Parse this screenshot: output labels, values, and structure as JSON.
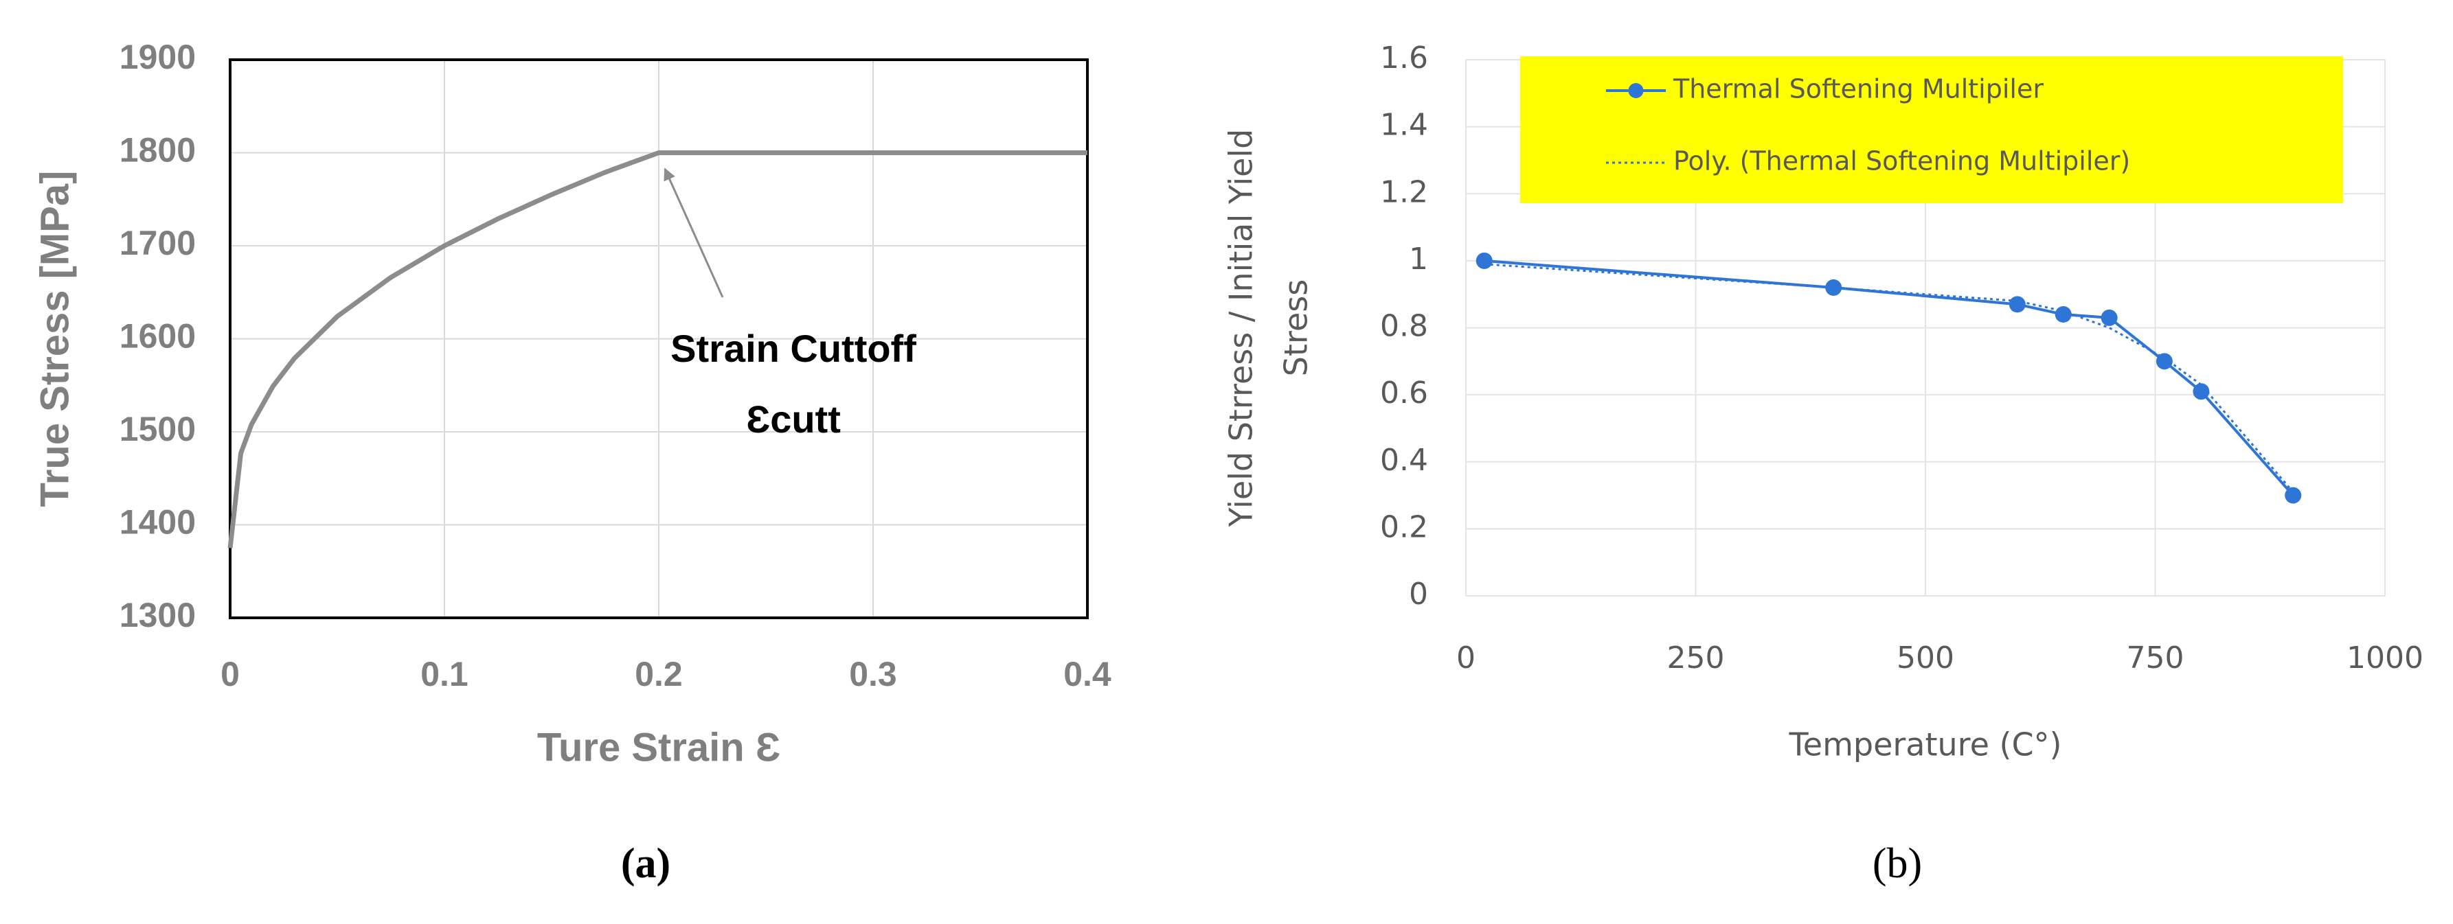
{
  "chart_data": [
    {
      "type": "line",
      "caption": "(a)",
      "xlabel": "Ture Strain Ɛ",
      "ylabel": "True Stress [MPa]",
      "annotations": [
        "Strain Cuttoff",
        "Ɛcutt"
      ],
      "xlim": [
        0,
        0.4
      ],
      "xticks": [
        0,
        0.1,
        0.2,
        0.3,
        0.4
      ],
      "ylim": [
        1300,
        1900
      ],
      "yticks": [
        1300,
        1400,
        1500,
        1600,
        1700,
        1800,
        1900
      ],
      "grid": true,
      "frame": true,
      "series": [
        {
          "color": "#8c8c8c",
          "markers": false,
          "line_style": "solid",
          "x": [
            0,
            0.005,
            0.01,
            0.02,
            0.03,
            0.05,
            0.075,
            0.1,
            0.125,
            0.15,
            0.175,
            0.2,
            0.3,
            0.4
          ],
          "values": [
            1375,
            1477,
            1508,
            1549,
            1579,
            1624,
            1666,
            1700,
            1729,
            1755,
            1779,
            1800,
            1800,
            1800
          ]
        }
      ]
    },
    {
      "type": "line",
      "caption": "(b)",
      "xlabel": "Temperature (C°)",
      "ylabel": [
        "Yield Strress / Initial Yield",
        "Stress"
      ],
      "xlim": [
        0,
        1000
      ],
      "xticks": [
        0,
        250,
        500,
        750,
        1000
      ],
      "ylim": [
        0,
        1.6
      ],
      "yticks": [
        0,
        0.2,
        0.4,
        0.6,
        0.8,
        1,
        1.2,
        1.4,
        1.6
      ],
      "grid": true,
      "frame": false,
      "legend": "top",
      "legend_color": "#ffff00",
      "series": [
        {
          "name": "Thermal Softening Multipiler",
          "color": "#2e75d6",
          "markers": true,
          "line_style": "solid",
          "x": [
            20,
            400,
            600,
            650,
            700,
            760,
            800,
            900
          ],
          "values": [
            1,
            0.92,
            0.87,
            0.84,
            0.83,
            0.7,
            0.61,
            0.3
          ]
        },
        {
          "name": "Poly. (Thermal Softening Multipiler)",
          "color": "#2e75d6",
          "markers": false,
          "line_style": "dotted",
          "x": [
            20,
            400,
            600,
            650,
            700,
            760,
            800,
            900
          ],
          "values": [
            0.99,
            0.92,
            0.88,
            0.85,
            0.8,
            0.71,
            0.63,
            0.31
          ]
        }
      ]
    }
  ]
}
